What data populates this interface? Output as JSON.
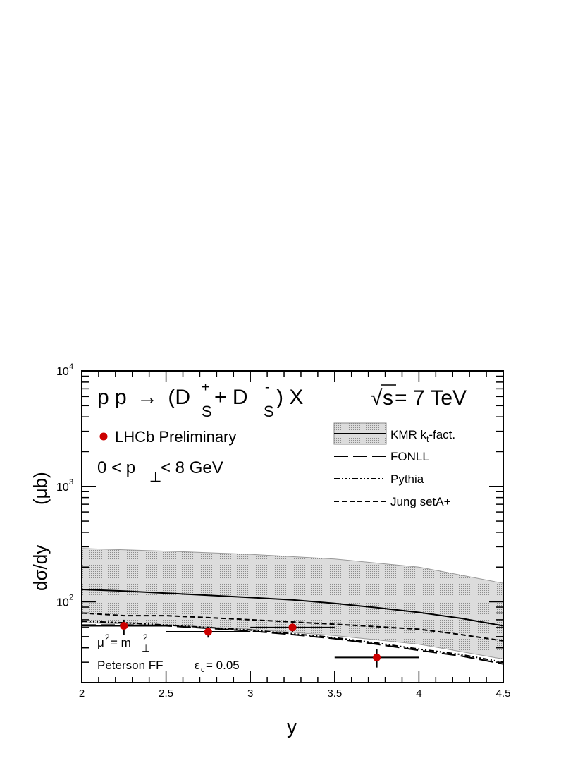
{
  "chart_data": {
    "type": "line",
    "title_reaction": "p p → (D⁺S + D⁻S) X",
    "title_reaction_parts": {
      "pp": "p p",
      "arrow": "→",
      "open": "(D",
      "plus_sup": "+",
      "sub1": "S",
      "mid": " + D",
      "minus_sup": "-",
      "sub2": "S",
      "close": ") X"
    },
    "energy_label": "√s = 7 TeV",
    "energy_parts": {
      "root": "√",
      "s": "s",
      "rest": " = 7 TeV"
    },
    "pt_range_label": "0 < p⊥< 8 GeV",
    "pt_parts": {
      "pre": "0 < p",
      "sub": "⊥",
      "post": "< 8 GeV"
    },
    "scale_label": "μ² = m²⊥",
    "scale_parts": {
      "mu": "μ",
      "mu_sup": "2",
      "eq": " = m",
      "m_sup": "2",
      "m_sub": "⊥"
    },
    "ff_label": "Peterson FF   εc = 0.05",
    "ff_parts": {
      "pre": "Peterson FF",
      "eps": "ε",
      "eps_sub": "c",
      "post": " = 0.05"
    },
    "xlabel": "y",
    "ylabel": "dσ/dy",
    "ylabel_unit": "(μb)",
    "xlim": [
      2,
      4.5
    ],
    "ylim": [
      20,
      10000
    ],
    "yscale": "log",
    "x_ticks": [
      2,
      2.5,
      3,
      3.5,
      4,
      4.5
    ],
    "x_tick_labels": [
      "2",
      "2.5",
      "3",
      "3.5",
      "4",
      "4.5"
    ],
    "y_major_ticks": [
      100,
      1000,
      10000
    ],
    "y_tick_labels": [
      {
        "base": "10",
        "exp": "2"
      },
      {
        "base": "10",
        "exp": "3"
      },
      {
        "base": "10",
        "exp": "4"
      }
    ],
    "legend_placement": "top-right",
    "grid": false,
    "data_points": {
      "name": "LHCb Preliminary",
      "color": "#cc0000",
      "points": [
        {
          "x": 2.25,
          "y": 62,
          "xerr": 0.25,
          "ylow": 52,
          "yhigh": 70
        },
        {
          "x": 2.75,
          "y": 55,
          "xerr": 0.25,
          "ylow": 49,
          "yhigh": 61
        },
        {
          "x": 3.25,
          "y": 60,
          "xerr": 0.25,
          "ylow": 55,
          "yhigh": 65
        },
        {
          "x": 3.75,
          "y": 33,
          "xerr": 0.25,
          "ylow": 27,
          "yhigh": 39
        }
      ]
    },
    "band": {
      "name": "KMR kt-fact.",
      "name_parts": {
        "pre": "KMR k",
        "sub": "t",
        "post": "-fact."
      },
      "color": "#c8c8c8",
      "x": [
        2.0,
        2.5,
        3.0,
        3.5,
        4.0,
        4.5
      ],
      "upper": [
        290,
        275,
        258,
        235,
        200,
        145
      ],
      "lower": [
        66,
        63,
        58,
        51,
        43,
        32
      ]
    },
    "series": [
      {
        "name": "KMR kt-fact.",
        "style": "solid",
        "x": [
          2.0,
          2.25,
          2.5,
          2.75,
          3.0,
          3.25,
          3.5,
          3.75,
          4.0,
          4.25,
          4.5
        ],
        "values": [
          128,
          124,
          119,
          114,
          109,
          104,
          97,
          89,
          81,
          72,
          62
        ]
      },
      {
        "name": "FONLL",
        "style": "longdash",
        "x": [
          2.0,
          2.25,
          2.5,
          2.75,
          3.0,
          3.25,
          3.5,
          3.75,
          4.0,
          4.25,
          4.5
        ],
        "values": [
          63,
          63,
          62,
          59,
          56,
          52,
          48,
          43,
          38,
          34,
          29
        ]
      },
      {
        "name": "Pythia",
        "style": "dashdotdot",
        "x": [
          2.0,
          2.25,
          2.5,
          2.75,
          3.0,
          3.25,
          3.5,
          3.75,
          4.0,
          4.25,
          4.5
        ],
        "values": [
          68,
          66,
          63,
          60,
          57,
          53,
          49,
          44,
          39,
          35,
          30
        ]
      },
      {
        "name": "Jung setA+",
        "style": "dashed",
        "x": [
          2.0,
          2.25,
          2.5,
          2.75,
          3.0,
          3.25,
          3.5,
          3.75,
          4.0,
          4.25,
          4.5
        ],
        "values": [
          80,
          76,
          76,
          73,
          70,
          67,
          64,
          61,
          58,
          52,
          46
        ]
      }
    ]
  }
}
